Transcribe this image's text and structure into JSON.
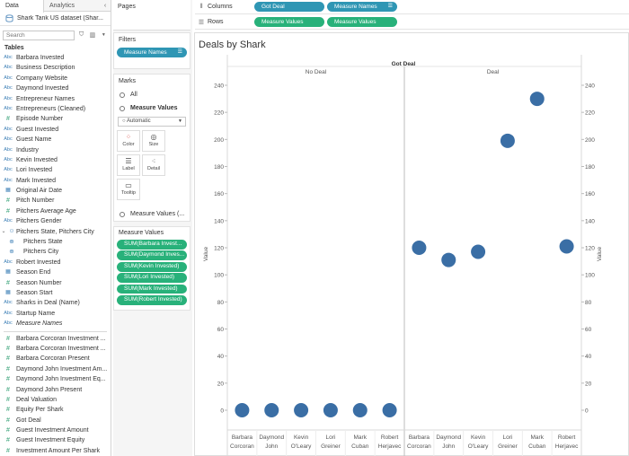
{
  "data_pane": {
    "tab_data": "Data",
    "tab_analytics": "Analytics",
    "collapse": "‹",
    "datasource": "Shark Tank US dataset (Shar...",
    "search_placeholder": "Search",
    "tables_heading": "Tables",
    "fields": [
      {
        "type": "abc",
        "name": "Barbara Invested"
      },
      {
        "type": "abc",
        "name": "Business Description"
      },
      {
        "type": "abc",
        "name": "Company Website"
      },
      {
        "type": "abc",
        "name": "Daymond Invested"
      },
      {
        "type": "abc",
        "name": "Entrepreneur Names"
      },
      {
        "type": "abc",
        "name": "Entrepreneurs (Cleaned)"
      },
      {
        "type": "num",
        "name": "Episode Number"
      },
      {
        "type": "abc",
        "name": "Guest Invested"
      },
      {
        "type": "abc",
        "name": "Guest Name"
      },
      {
        "type": "abc",
        "name": "Industry"
      },
      {
        "type": "abc",
        "name": "Kevin Invested"
      },
      {
        "type": "abc",
        "name": "Lori Invested"
      },
      {
        "type": "abc",
        "name": "Mark Invested"
      },
      {
        "type": "date",
        "name": "Original Air Date"
      },
      {
        "type": "num",
        "name": "Pitch Number"
      },
      {
        "type": "num",
        "name": "Pitchers Average Age"
      },
      {
        "type": "abc",
        "name": "Pitchers Gender"
      },
      {
        "type": "hier",
        "name": "Pitchers State, Pitchers City"
      },
      {
        "type": "geo",
        "name": "Pitchers State",
        "indent": true
      },
      {
        "type": "geo",
        "name": "Pitchers City",
        "indent": true
      },
      {
        "type": "abc",
        "name": "Robert Invested"
      },
      {
        "type": "date",
        "name": "Season End"
      },
      {
        "type": "num",
        "name": "Season Number"
      },
      {
        "type": "date",
        "name": "Season Start"
      },
      {
        "type": "abc",
        "name": "Sharks in Deal (Name)"
      },
      {
        "type": "abc",
        "name": "Startup Name"
      },
      {
        "type": "abc",
        "name": "Measure Names",
        "italic": true
      }
    ],
    "measures": [
      {
        "name": "Barbara Corcoran Investment ..."
      },
      {
        "name": "Barbara Corcoran Investment ..."
      },
      {
        "name": "Barbara Corcoran Present"
      },
      {
        "name": "Daymond John Investment Am..."
      },
      {
        "name": "Daymond John Investment Eq..."
      },
      {
        "name": "Daymond John Present"
      },
      {
        "name": "Deal Valuation"
      },
      {
        "name": "Equity Per Shark"
      },
      {
        "name": "Got Deal"
      },
      {
        "name": "Guest Investment Amount"
      },
      {
        "name": "Guest Investment Equity"
      },
      {
        "name": "Investment Amount Per Shark"
      }
    ]
  },
  "cards": {
    "pages_title": "Pages",
    "filters_title": "Filters",
    "filter_pill": "Measure Names",
    "marks_title": "Marks",
    "marks_all": "All",
    "marks_measure_values": "Measure Values",
    "mark_type": "Automatic",
    "mark_buttons": [
      {
        "icon": "color-icon",
        "glyph": "⁘",
        "label": "Color"
      },
      {
        "icon": "size-icon",
        "glyph": "◎",
        "label": "Size"
      },
      {
        "icon": "label-icon",
        "glyph": "☰",
        "label": "Label"
      },
      {
        "icon": "detail-icon",
        "glyph": "⁖",
        "label": "Detail"
      },
      {
        "icon": "tooltip-icon",
        "glyph": "▭",
        "label": "Tooltip"
      }
    ],
    "marks_measure_values_sub": "Measure Values (...",
    "mv_title": "Measure Values",
    "mv_pills": [
      "SUM(Barbara Invest...",
      "SUM(Daymond Inves...",
      "SUM(Kevin Invested)",
      "SUM(Lori Invested)",
      "SUM(Mark Invested)",
      "SUM(Robert Invested)"
    ]
  },
  "shelves": {
    "columns_label": "Columns",
    "columns_pills": [
      "Got Deal",
      "Measure Names"
    ],
    "rows_label": "Rows",
    "rows_pills": [
      "Measure Values",
      "Measure Values"
    ]
  },
  "viz": {
    "title": "Deals by Shark"
  },
  "chart_data": {
    "type": "scatter",
    "title": "Deals by Shark",
    "header": "Got Deal",
    "panes": [
      {
        "name": "No Deal",
        "categories": [
          "Barbara Corcoran",
          "Daymond John",
          "Kevin O'Leary",
          "Lori Greiner",
          "Mark Cuban",
          "Robert Herjavec"
        ],
        "values": [
          0,
          0,
          0,
          0,
          0,
          0
        ]
      },
      {
        "name": "Deal",
        "categories": [
          "Barbara Corcoran",
          "Daymond John",
          "Kevin O'Leary",
          "Lori Greiner",
          "Mark Cuban",
          "Robert Herjavec"
        ],
        "values": [
          120,
          111,
          117,
          199,
          230,
          121
        ]
      }
    ],
    "ylabel": "Value",
    "ylim": [
      0,
      240
    ],
    "yticks": [
      0,
      20,
      40,
      60,
      80,
      100,
      120,
      140,
      160,
      180,
      200,
      220,
      240
    ],
    "mark_color": "#3a6ea5"
  }
}
